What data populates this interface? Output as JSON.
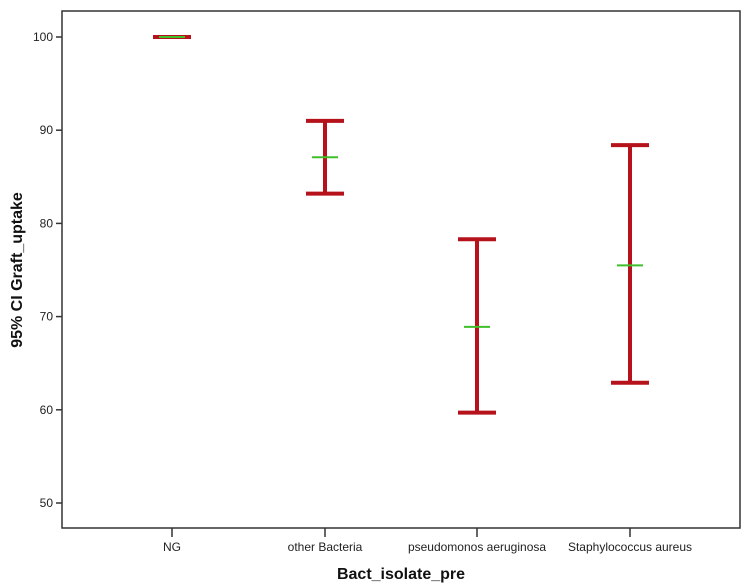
{
  "chart_data": {
    "type": "errorbar",
    "xlabel": "Bact_isolate_pre",
    "ylabel": "95% CI Graft_uptake",
    "categories": [
      "NG",
      "other Bacteria",
      "pseudomonos aeruginosa",
      "Staphylococcus aureus"
    ],
    "mean": [
      100,
      87.1,
      68.9,
      75.5
    ],
    "lower": [
      100,
      83.2,
      59.7,
      62.9
    ],
    "upper": [
      100,
      91.0,
      78.3,
      88.4
    ],
    "ylim": [
      47.3,
      102.8
    ],
    "yticks": [
      50,
      60,
      70,
      80,
      90,
      100
    ],
    "grid": false,
    "colors": {
      "whisker": "#b5121b",
      "mean": "#3fbf2a",
      "frame": "#333333"
    }
  }
}
